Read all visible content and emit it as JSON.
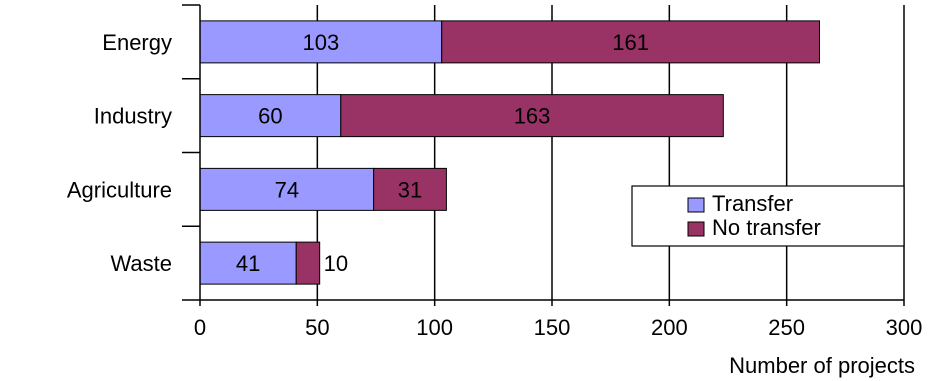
{
  "chart_data": {
    "type": "bar",
    "orientation": "horizontal",
    "stacked": true,
    "categories": [
      "Energy",
      "Industry",
      "Agriculture",
      "Waste"
    ],
    "series": [
      {
        "name": "Transfer",
        "values": [
          103,
          60,
          74,
          41
        ],
        "color": "#9999ff"
      },
      {
        "name": "No transfer",
        "values": [
          161,
          163,
          31,
          10
        ],
        "color": "#993366"
      }
    ],
    "xlabel": "Number of projects",
    "ylabel": "",
    "xlim": [
      0,
      300
    ],
    "xticks": [
      0,
      50,
      100,
      150,
      200,
      250,
      300
    ],
    "tick_labels": [
      "0",
      "50",
      "100",
      "150",
      "200",
      "250",
      "300"
    ],
    "grid": "vertical",
    "legend_position": "right"
  }
}
